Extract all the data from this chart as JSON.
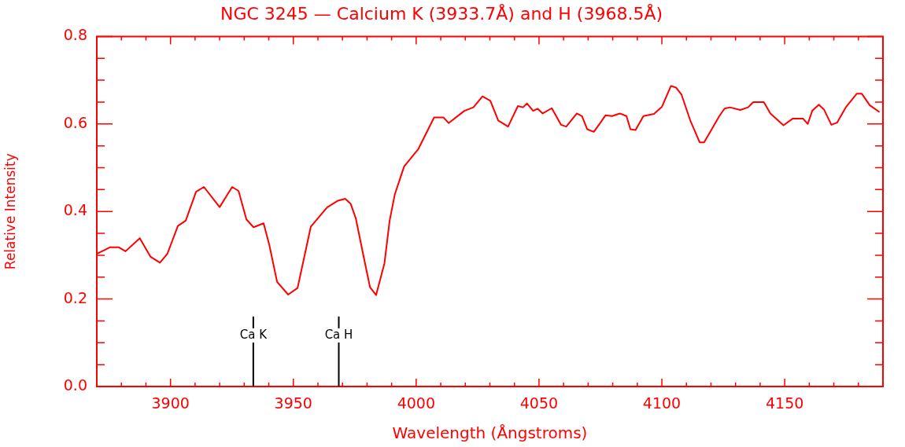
{
  "chart_data": {
    "type": "line",
    "title": "NGC 3245 — Calcium K (3933.7Å) and H (3968.5Å)",
    "xlabel": "Wavelength (Ångstroms)",
    "ylabel": "Relative Intensity",
    "xlim": [
      3870,
      4190
    ],
    "ylim": [
      0,
      0.8
    ],
    "xticks": [
      {
        "value": 3880,
        "label": null
      },
      {
        "value": 3890,
        "label": null
      },
      3900,
      {
        "value": 3910,
        "label": null
      },
      {
        "value": 3920,
        "label": null
      },
      {
        "value": 3930,
        "label": null
      },
      {
        "value": 3940,
        "label": null
      },
      3950,
      {
        "value": 3960,
        "label": null
      },
      {
        "value": 3970,
        "label": null
      },
      {
        "value": 3980,
        "label": null
      },
      {
        "value": 3990,
        "label": null
      },
      4000,
      {
        "value": 4010,
        "label": null
      },
      {
        "value": 4020,
        "label": null
      },
      {
        "value": 4030,
        "label": null
      },
      {
        "value": 4040,
        "label": null
      },
      4050,
      {
        "value": 4060,
        "label": null
      },
      {
        "value": 4070,
        "label": null
      },
      {
        "value": 4080,
        "label": null
      },
      {
        "value": 4090,
        "label": null
      },
      4100,
      {
        "value": 4110,
        "label": null
      },
      {
        "value": 4120,
        "label": null
      },
      {
        "value": 4130,
        "label": null
      },
      {
        "value": 4140,
        "label": null
      },
      4150,
      {
        "value": 4160,
        "label": null
      },
      {
        "value": 4170,
        "label": null
      },
      {
        "value": 4180,
        "label": null
      }
    ],
    "yticks": [
      {
        "value": 0,
        "label": "0.0"
      },
      {
        "value": 0.05,
        "label": null
      },
      {
        "value": 0.1,
        "label": null
      },
      {
        "value": 0.15,
        "label": null
      },
      {
        "value": 0.2,
        "label": "0.2"
      },
      {
        "value": 0.25,
        "label": null
      },
      {
        "value": 0.3,
        "label": null
      },
      {
        "value": 0.35,
        "label": null
      },
      {
        "value": 0.4,
        "label": "0.4"
      },
      {
        "value": 0.45,
        "label": null
      },
      {
        "value": 0.5,
        "label": null
      },
      {
        "value": 0.55,
        "label": null
      },
      {
        "value": 0.6,
        "label": "0.6"
      },
      {
        "value": 0.65,
        "label": null
      },
      {
        "value": 0.7,
        "label": null
      },
      {
        "value": 0.75,
        "label": null
      },
      {
        "value": 0.8,
        "label": "0.8"
      }
    ],
    "grid": false,
    "legend": false,
    "marker": "none",
    "line_style": "solid",
    "series": [
      {
        "color": "#ff0000",
        "x": [
          3870,
          3875.3,
          3879,
          3881.7,
          3887.5,
          3891.8,
          3895.7,
          3898.7,
          3903,
          3906.2,
          3910.4,
          3913.6,
          3920,
          3925.1,
          3927.7,
          3930.9,
          3933.8,
          3937.9,
          3940.2,
          3943.4,
          3947.9,
          3951.7,
          3957.1,
          3963.7,
          3967.9,
          3971.1,
          3973.3,
          3975.4,
          3978.6,
          3981.2,
          3983.7,
          3987.1,
          3989.2,
          3991.3,
          3995.1,
          4000.9,
          4007.3,
          4011.1,
          4013.2,
          4019.6,
          4023.3,
          4027,
          4030.2,
          4033.4,
          4037.4,
          4041.4,
          4043.5,
          4045.1,
          4047.6,
          4049.4,
          4051.5,
          4055.2,
          4059,
          4061.1,
          4065.4,
          4067.5,
          4069.6,
          4072.3,
          4075,
          4077.1,
          4079.7,
          4082.9,
          4085.6,
          4087.2,
          4089.3,
          4092.5,
          4096.8,
          4100,
          4103.7,
          4105.8,
          4108,
          4111.7,
          4115.4,
          4117.2,
          4123.4,
          4125.5,
          4127.7,
          4131.9,
          4135.1,
          4137.2,
          4141.5,
          4144.2,
          4149.5,
          4153.2,
          4157.5,
          4159.4,
          4161.2,
          4163.9,
          4166,
          4169,
          4171.3,
          4175,
          4179.3,
          4181.4,
          4184.6,
          4188.6
        ],
        "values": [
          0.303,
          0.318,
          0.318,
          0.309,
          0.339,
          0.297,
          0.283,
          0.303,
          0.367,
          0.379,
          0.445,
          0.456,
          0.41,
          0.456,
          0.447,
          0.382,
          0.364,
          0.373,
          0.324,
          0.239,
          0.21,
          0.225,
          0.365,
          0.409,
          0.424,
          0.429,
          0.418,
          0.385,
          0.297,
          0.227,
          0.209,
          0.282,
          0.379,
          0.439,
          0.503,
          0.543,
          0.615,
          0.615,
          0.602,
          0.63,
          0.638,
          0.663,
          0.653,
          0.608,
          0.594,
          0.641,
          0.638,
          0.647,
          0.63,
          0.635,
          0.624,
          0.636,
          0.598,
          0.594,
          0.624,
          0.618,
          0.588,
          0.582,
          0.603,
          0.62,
          0.618,
          0.624,
          0.618,
          0.588,
          0.586,
          0.618,
          0.623,
          0.639,
          0.687,
          0.683,
          0.667,
          0.606,
          0.558,
          0.558,
          0.618,
          0.635,
          0.638,
          0.632,
          0.638,
          0.65,
          0.65,
          0.624,
          0.597,
          0.612,
          0.612,
          0.6,
          0.63,
          0.644,
          0.633,
          0.598,
          0.603,
          0.639,
          0.669,
          0.669,
          0.643,
          0.627
        ]
      }
    ],
    "ref_lines": [
      {
        "axis": "x",
        "value": 3933.7,
        "label": "Ca K",
        "color": "#000000"
      },
      {
        "axis": "x",
        "value": 3968.5,
        "label": "Ca H",
        "color": "#000000"
      }
    ]
  }
}
